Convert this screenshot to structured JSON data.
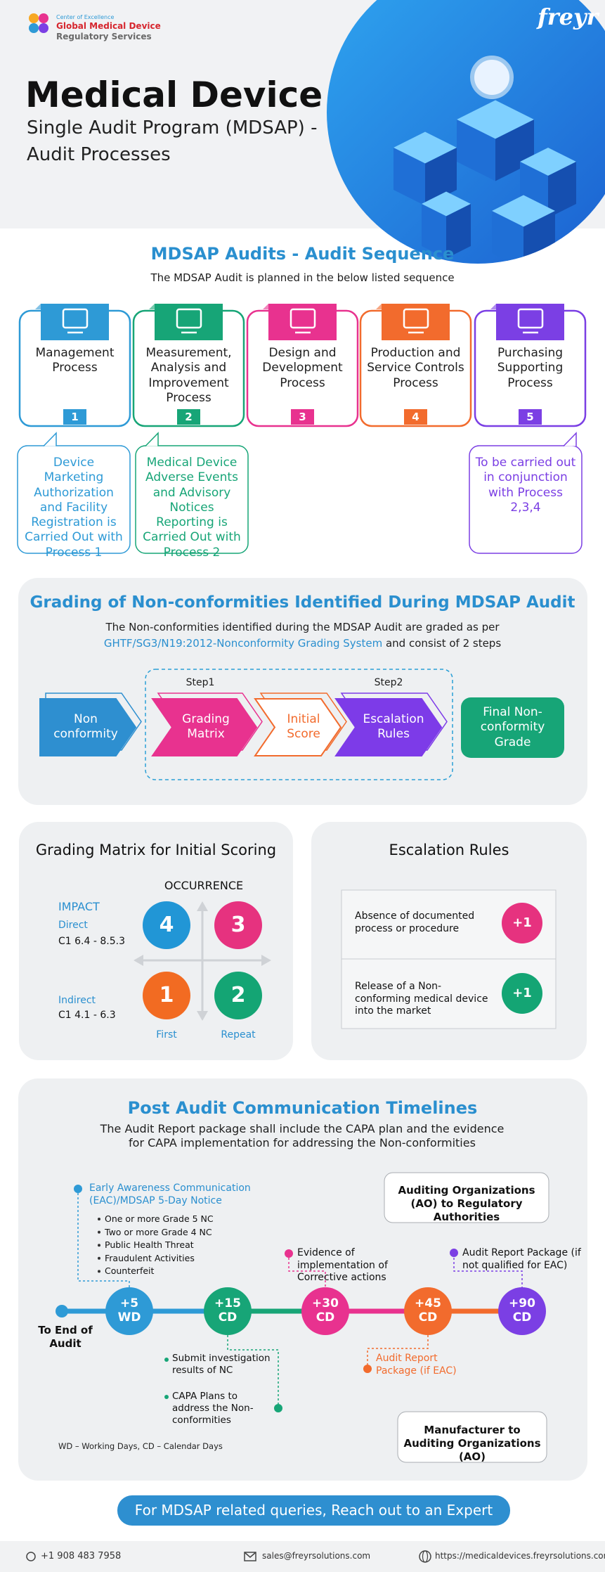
{
  "header": {
    "coe": "Center of Excellence",
    "org_line1": "Global Medical Device",
    "org_line2": "Regulatory Services",
    "brand": "freyr",
    "title": "Medical Device",
    "subtitle": [
      "Single Audit Program (MDSAP) -",
      "Audit Processes"
    ]
  },
  "sequence": {
    "title": "MDSAP Audits - Audit Sequence",
    "intro": "The MDSAP Audit is planned in the below listed sequence",
    "steps": [
      {
        "label": "Management Process",
        "number": 1
      },
      {
        "label": "Measurement, Analysis and Improvement Process",
        "number": 2
      },
      {
        "label": "Design and Development Process",
        "number": 3
      },
      {
        "label": "Production and Service Controls Process",
        "number": 4
      },
      {
        "label": "Purchasing Supporting Process",
        "number": 5
      }
    ],
    "notes": [
      "Device Marketing Authorization and Facility Registration is Carried Out with Process 1",
      "Medical Device Adverse Events and Advisory Notices Reporting is Carried Out with Process 2",
      "To be carried out in conjunction with Process 2,3,4"
    ]
  },
  "grading": {
    "title": "Grading of Non-conformities Identified During MDSAP Audit",
    "intro": [
      "The Non-conformities identified during the MDSAP Audit are graded as per",
      "GHTF/SG3/N19:2012-Nonconformity Grading System",
      "and consist of 2 steps"
    ],
    "flow": {
      "start": "Non conformity",
      "step1_label": "Step1",
      "step1": "Grading Matrix",
      "score": "Initial Score",
      "step2_label": "Step2",
      "step2": "Escalation Rules",
      "final": "Final Non-conformity Grade"
    }
  },
  "matrix": {
    "title": "Grading Matrix for Initial Scoring",
    "occurrence": "OCCURRENCE",
    "impact": "IMPACT",
    "direct": "Direct",
    "direct_clauses": "C1 6.4 - 8.5.3",
    "indirect": "Indirect",
    "indirect_clauses": "C1 4.1 - 6.3",
    "grades": [
      4,
      3,
      1,
      2
    ],
    "first": "First",
    "repeat": "Repeat"
  },
  "escalation": {
    "title": "Escalation Rules",
    "rules": [
      {
        "text": "Absence of documented process or procedure",
        "increment": "+1"
      },
      {
        "text": "Release of a Non-conforming medical device into the market",
        "increment": "+1"
      }
    ]
  },
  "timeline": {
    "title": "Post Audit Communication Timelines",
    "intro": "The Audit Report package shall include the CAPA plan and the evidence for CAPA implementation for addressing the Non-conformities",
    "start": "To End of Audit",
    "milestones": [
      "+5 WD",
      "+15 CD",
      "+30 CD",
      "+45 CD",
      "+90 CD"
    ],
    "eac": {
      "title": "Early Awareness Communication (EAC)/MDSAP 5-Day Notice",
      "items": [
        "One or more Grade 5 NC",
        "Two or more Grade 4 NC",
        "Public Health Threat",
        "Fraudulent Activities",
        "Counterfeit"
      ]
    },
    "evidence": "Evidence of implementation of Corrective actions",
    "report_no_eac": "Audit Report Package (if not qualified for EAC)",
    "investigation": "Submit investigation results of NC",
    "capa": "CAPA Plans to address the Non-conformities",
    "report_eac": "Audit Report Package (if EAC)",
    "ao_to_ra": "Auditing Organizations (AO) to Regulatory Authorities",
    "mfr_to_ao": "Manufacturer to Auditing Organizations (AO)",
    "legend": "WD – Working Days, CD – Calendar Days"
  },
  "cta": "For MDSAP related queries, Reach out to an Expert",
  "footer": {
    "phone": "+1 908 483 7958",
    "email": "sales@freyrsolutions.com",
    "url": "https://medicaldevices.freyrsolutions.com"
  }
}
